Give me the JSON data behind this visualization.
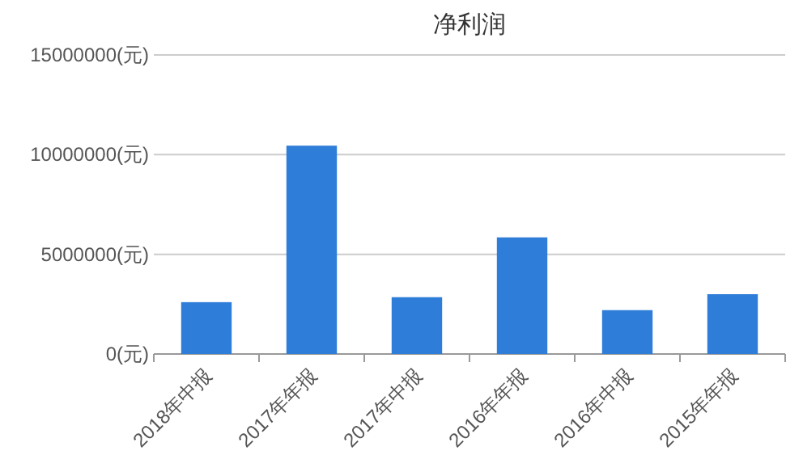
{
  "chart_data": {
    "type": "bar",
    "title": "净利润",
    "categories": [
      "2018年中报",
      "2017年年报",
      "2017年中报",
      "2016年年报",
      "2016年中报",
      "2015年年报"
    ],
    "values": [
      2600000,
      10450000,
      2850000,
      5850000,
      2200000,
      3000000
    ],
    "color": "#2e7dd8",
    "ylim": [
      0,
      15000000
    ],
    "yticks": [
      {
        "value": 0,
        "label": "0(元)"
      },
      {
        "value": 5000000,
        "label": "5000000(元)"
      },
      {
        "value": 10000000,
        "label": "10000000(元)"
      },
      {
        "value": 15000000,
        "label": "15000000(元)"
      }
    ],
    "grid": "y"
  }
}
